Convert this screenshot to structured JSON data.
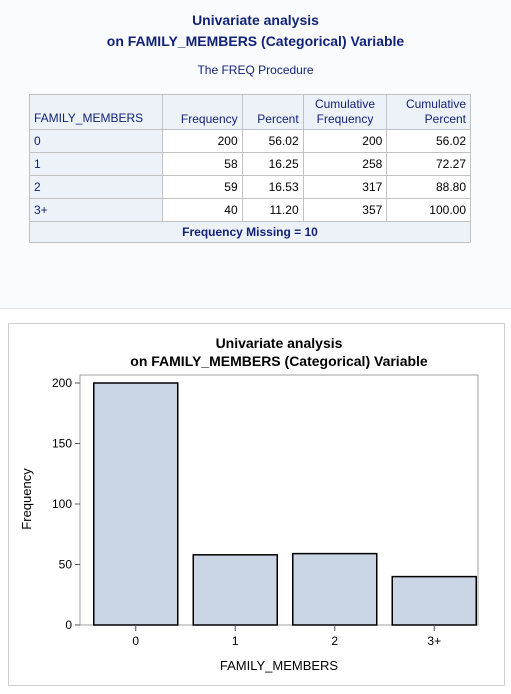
{
  "report": {
    "title_line1": "Univariate analysis",
    "title_line2": "on FAMILY_MEMBERS (Categorical) Variable",
    "proc_title": "The FREQ Procedure"
  },
  "table": {
    "headers": {
      "variable": "FAMILY_MEMBERS",
      "frequency": "Frequency",
      "percent": "Percent",
      "cum_freq_line1": "Cumulative",
      "cum_freq_line2": "Frequency",
      "cum_pct_line1": "Cumulative",
      "cum_pct_line2": "Percent"
    },
    "rows": [
      {
        "level": "0",
        "frequency": "200",
        "percent": "56.02",
        "cum_freq": "200",
        "cum_pct": "56.02"
      },
      {
        "level": "1",
        "frequency": "58",
        "percent": "16.25",
        "cum_freq": "258",
        "cum_pct": "72.27"
      },
      {
        "level": "2",
        "frequency": "59",
        "percent": "16.53",
        "cum_freq": "317",
        "cum_pct": "88.80"
      },
      {
        "level": "3+",
        "frequency": "40",
        "percent": "11.20",
        "cum_freq": "357",
        "cum_pct": "100.00"
      }
    ],
    "footer": "Frequency Missing = 10"
  },
  "chart_data": {
    "type": "bar",
    "title": "Univariate analysis",
    "subtitle": "on FAMILY_MEMBERS (Categorical) Variable",
    "categories": [
      "0",
      "1",
      "2",
      "3+"
    ],
    "values": [
      200,
      58,
      59,
      40
    ],
    "xlabel": "FAMILY_MEMBERS",
    "ylabel": "Frequency",
    "ylim": [
      0,
      200
    ],
    "yticks": [
      0,
      50,
      100,
      150,
      200
    ],
    "grid": false,
    "bar_color": "#cad5e5",
    "bar_outline": "#000000"
  }
}
